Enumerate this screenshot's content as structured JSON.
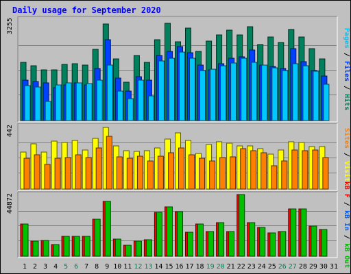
{
  "chart_data": {
    "type": "bar",
    "title": "Daily usage for September 2020",
    "categories": [
      "1",
      "2",
      "3",
      "4",
      "5",
      "6",
      "7",
      "8",
      "9",
      "10",
      "11",
      "12",
      "13",
      "14",
      "15",
      "16",
      "17",
      "18",
      "19",
      "20",
      "21",
      "22",
      "23",
      "24",
      "25",
      "26",
      "27",
      "28",
      "29",
      "30",
      "31"
    ],
    "weekend_days": [
      "5",
      "6",
      "12",
      "13",
      "19",
      "20",
      "26",
      "27"
    ],
    "panels": [
      {
        "max_label": "3255",
        "ymax": 3255,
        "series": [
          {
            "name": "Hits",
            "color": "#00805c",
            "values": [
              1880,
              1760,
              1620,
              1620,
              1800,
              1830,
              1790,
              2280,
              3100,
              1970,
              1230,
              2090,
              1870,
              2600,
              3120,
              2520,
              2970,
              2220,
              2560,
              2750,
              2900,
              2750,
              3020,
              2440,
              2680,
              2500,
              2920,
              2680,
              2320,
              1970,
              0
            ]
          },
          {
            "name": "Files",
            "color": "#0040ff",
            "values": [
              1300,
              1260,
              1200,
              1050,
              1140,
              1200,
              1150,
              1670,
              2600,
              1370,
              950,
              1410,
              1300,
              2080,
              2230,
              2370,
              2180,
              1790,
              1630,
              1830,
              2000,
              2040,
              2260,
              1780,
              1740,
              1670,
              2310,
              1900,
              1600,
              1420,
              0
            ]
          },
          {
            "name": "Pages",
            "color": "#00c8ff",
            "values": [
              1120,
              1080,
              620,
              1140,
              1200,
              1220,
              1180,
              1290,
              1780,
              950,
              700,
              1300,
              800,
              1920,
              2000,
              2200,
              2010,
              1600,
              1650,
              1770,
              1850,
              2000,
              1880,
              1780,
              1700,
              1600,
              1830,
              1750,
              1580,
              1160,
              0
            ]
          }
        ]
      },
      {
        "max_label": "442",
        "ymax": 442,
        "series": [
          {
            "name": "Visits",
            "color": "#ffff00",
            "values": [
              258,
              315,
              258,
              335,
              325,
              340,
              275,
              355,
              430,
              305,
              270,
              265,
              270,
              290,
              350,
              392,
              340,
              250,
              310,
              330,
              320,
              305,
              305,
              285,
              245,
              275,
              330,
              325,
              300,
              300,
              0
            ]
          },
          {
            "name": "Sites",
            "color": "#ff8000",
            "values": [
              218,
              238,
              172,
              218,
              222,
              238,
              222,
              290,
              368,
              225,
              218,
              232,
              195,
              232,
              255,
              290,
              238,
              218,
              195,
              222,
              225,
              282,
              270,
              255,
              165,
              195,
              275,
              270,
              275,
              222,
              0
            ]
          }
        ]
      },
      {
        "max_label": "44872",
        "ymax": 44872,
        "series": [
          {
            "name": "KB F",
            "color": "#ff0000",
            "values": [
              23600,
              11200,
              11300,
              8600,
              14500,
              14600,
              14300,
              27000,
              39700,
              12600,
              8200,
              11000,
              12200,
              32000,
              36000,
              32500,
              17500,
              23600,
              18000,
              24600,
              18000,
              45000,
              24600,
              21000,
              17000,
              18000,
              34400,
              34400,
              22000,
              19200,
              0
            ]
          },
          {
            "name": "KB In",
            "color": "#0060ff",
            "values": [
              0,
              0,
              0,
              0,
              0,
              0,
              0,
              0,
              0,
              0,
              0,
              0,
              0,
              0,
              0,
              0,
              0,
              0,
              0,
              0,
              0,
              0,
              0,
              0,
              0,
              0,
              0,
              0,
              0,
              0,
              0
            ]
          },
          {
            "name": "KB Out",
            "color": "#00c000",
            "values": [
              23600,
              11200,
              11300,
              8600,
              14500,
              14600,
              14300,
              27000,
              39700,
              12600,
              8200,
              11000,
              12200,
              32000,
              36000,
              32500,
              17500,
              23600,
              18000,
              24600,
              18000,
              45000,
              24600,
              21000,
              17000,
              18000,
              34400,
              34400,
              22000,
              19200,
              0
            ]
          }
        ]
      }
    ],
    "right_legends": [
      [
        {
          "text": "Pages",
          "color": "#00c8ff"
        },
        {
          "text": " / ",
          "color": "#000000"
        },
        {
          "text": "Files",
          "color": "#0040ff"
        },
        {
          "text": " / ",
          "color": "#000000"
        },
        {
          "text": "Hits",
          "color": "#00805c"
        }
      ],
      [
        {
          "text": "Sites",
          "color": "#ff8000"
        },
        {
          "text": " / ",
          "color": "#000000"
        },
        {
          "text": "Visits",
          "color": "#ffff00"
        }
      ],
      [
        {
          "text": "kB F",
          "color": "#ff0000"
        },
        {
          "text": " / ",
          "color": "#000000"
        },
        {
          "text": "kB In",
          "color": "#0060ff"
        },
        {
          "text": " / ",
          "color": "#000000"
        },
        {
          "text": "kB Out",
          "color": "#00c000"
        }
      ]
    ],
    "colors": {
      "title": "#0000ff",
      "weekday_label": "#000000",
      "weekend_label": "#00805c",
      "background": "#c0c0c0",
      "plot_background": "#c0c0c0"
    },
    "grid": true
  }
}
